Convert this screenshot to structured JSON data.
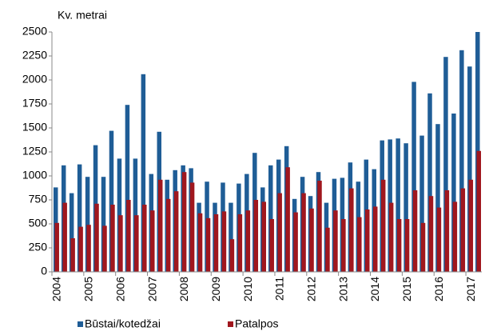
{
  "chart_data": {
    "type": "bar",
    "y_label": "Kv. metrai",
    "categories": [
      "2004",
      null,
      null,
      null,
      "2005",
      null,
      null,
      null,
      "2006",
      null,
      null,
      null,
      "2007",
      null,
      null,
      null,
      "2008",
      null,
      null,
      null,
      "2009",
      null,
      null,
      null,
      "2010",
      null,
      null,
      null,
      "2011",
      null,
      null,
      null,
      "2012",
      null,
      null,
      null,
      "2013",
      null,
      null,
      null,
      "2014",
      null,
      null,
      null,
      "2015",
      null,
      null,
      null,
      "2016",
      null,
      null,
      null,
      "2017",
      null
    ],
    "series": [
      {
        "name": "Būstai/kotedžai",
        "color": "#1f5d96",
        "values": [
          880,
          1110,
          820,
          1120,
          990,
          1320,
          990,
          1470,
          1180,
          1740,
          1180,
          2060,
          1020,
          1460,
          960,
          1060,
          1110,
          1080,
          720,
          940,
          720,
          930,
          720,
          920,
          1020,
          1240,
          880,
          1110,
          1170,
          1310,
          760,
          990,
          790,
          1040,
          720,
          970,
          980,
          1140,
          940,
          1170,
          1070,
          1370,
          1380,
          1390,
          1340,
          1980,
          1420,
          1860,
          1540,
          2240,
          1650,
          2310,
          2140,
          2500
        ]
      },
      {
        "name": "Patalpos",
        "color": "#a0171e",
        "values": [
          510,
          720,
          350,
          470,
          490,
          710,
          480,
          700,
          590,
          750,
          590,
          700,
          640,
          960,
          760,
          840,
          1040,
          930,
          610,
          560,
          600,
          630,
          340,
          600,
          640,
          750,
          730,
          550,
          820,
          1090,
          620,
          820,
          660,
          950,
          460,
          640,
          550,
          870,
          570,
          650,
          680,
          960,
          720,
          550,
          550,
          850,
          510,
          790,
          670,
          850,
          730,
          870,
          960,
          1260
        ]
      }
    ],
    "ylim": [
      0,
      2500
    ],
    "yticks": [
      0,
      250,
      500,
      750,
      1000,
      1250,
      1500,
      1750,
      2000,
      2250,
      2500
    ],
    "grid": false,
    "legend": "bottom"
  }
}
